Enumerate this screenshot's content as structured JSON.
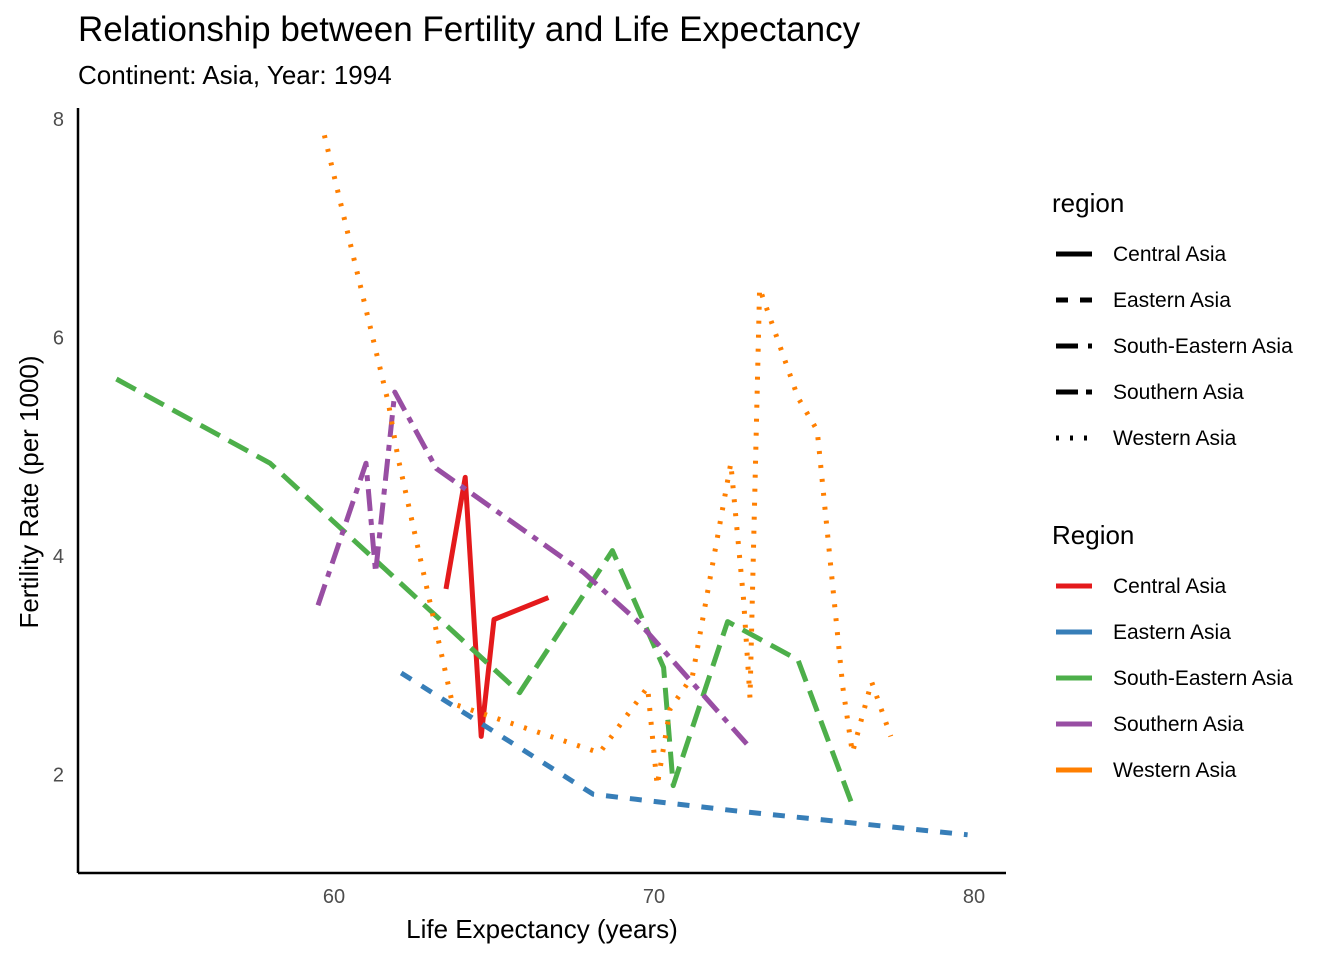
{
  "header": {
    "title": "Relationship between Fertility and Life Expectancy",
    "subtitle": "Continent: Asia, Year: 1994"
  },
  "chart_data": {
    "type": "line",
    "title": "Relationship between Fertility and Life Expectancy",
    "subtitle": "Continent: Asia, Year: 1994",
    "xlabel": "Life Expectancy (years)",
    "ylabel": "Fertility Rate (per 1000)",
    "xlim": [
      52,
      81
    ],
    "ylim": [
      1.1,
      8.1
    ],
    "xticks": [
      60,
      70,
      80
    ],
    "yticks": [
      2,
      4,
      6,
      8
    ],
    "grid": false,
    "legend_position": "right",
    "legends": [
      {
        "title": "region",
        "kind": "linetype",
        "entries": [
          {
            "label": "Central Asia",
            "dash": "solid"
          },
          {
            "label": "Eastern Asia",
            "dash": "dashed"
          },
          {
            "label": "South-Eastern Asia",
            "dash": "longdash"
          },
          {
            "label": "Southern Asia",
            "dash": "twodash"
          },
          {
            "label": "Western Asia",
            "dash": "dotted"
          }
        ]
      },
      {
        "title": "Region",
        "kind": "color",
        "entries": [
          {
            "label": "Central Asia",
            "color": "#e41a1c"
          },
          {
            "label": "Eastern Asia",
            "color": "#377eb8"
          },
          {
            "label": "South-Eastern Asia",
            "color": "#4daf4a"
          },
          {
            "label": "Southern Asia",
            "color": "#984ea3"
          },
          {
            "label": "Western Asia",
            "color": "#ff7f00"
          }
        ]
      }
    ],
    "series": [
      {
        "name": "Central Asia",
        "color": "#e41a1c",
        "dash": "solid",
        "points": [
          [
            63.5,
            3.7
          ],
          [
            64.1,
            4.72
          ],
          [
            64.6,
            2.35
          ],
          [
            65.0,
            3.42
          ],
          [
            66.7,
            3.62
          ]
        ]
      },
      {
        "name": "Eastern Asia",
        "color": "#377eb8",
        "dash": "dashed",
        "points": [
          [
            62.1,
            2.93
          ],
          [
            68.1,
            1.82
          ],
          [
            72.5,
            1.67
          ],
          [
            79.8,
            1.45
          ]
        ]
      },
      {
        "name": "South-Eastern Asia",
        "color": "#4daf4a",
        "dash": "longdash",
        "points": [
          [
            53.2,
            5.62
          ],
          [
            58.0,
            4.85
          ],
          [
            65.8,
            2.75
          ],
          [
            68.7,
            4.05
          ],
          [
            70.3,
            2.98
          ],
          [
            70.6,
            1.9
          ],
          [
            72.3,
            3.4
          ],
          [
            74.5,
            3.05
          ],
          [
            76.2,
            1.72
          ]
        ]
      },
      {
        "name": "Southern Asia",
        "color": "#984ea3",
        "dash": "twodash",
        "points": [
          [
            59.5,
            3.55
          ],
          [
            61.0,
            4.85
          ],
          [
            61.3,
            3.85
          ],
          [
            61.9,
            5.5
          ],
          [
            63.2,
            4.8
          ],
          [
            67.8,
            3.85
          ],
          [
            69.5,
            3.4
          ],
          [
            72.9,
            2.28
          ]
        ]
      },
      {
        "name": "Western Asia",
        "color": "#ff7f00",
        "dash": "dotted",
        "points": [
          [
            59.7,
            7.85
          ],
          [
            61.7,
            5.4
          ],
          [
            62.0,
            4.9
          ],
          [
            63.7,
            2.65
          ],
          [
            68.3,
            2.2
          ],
          [
            69.8,
            2.8
          ],
          [
            70.1,
            1.9
          ],
          [
            70.5,
            2.6
          ],
          [
            71.2,
            2.9
          ],
          [
            72.4,
            4.85
          ],
          [
            72.8,
            3.6
          ],
          [
            73.0,
            2.7
          ],
          [
            73.3,
            6.45
          ],
          [
            74.5,
            5.45
          ],
          [
            75.1,
            5.15
          ],
          [
            75.9,
            2.8
          ],
          [
            76.2,
            2.2
          ],
          [
            76.8,
            2.85
          ],
          [
            77.4,
            2.35
          ]
        ]
      }
    ]
  }
}
